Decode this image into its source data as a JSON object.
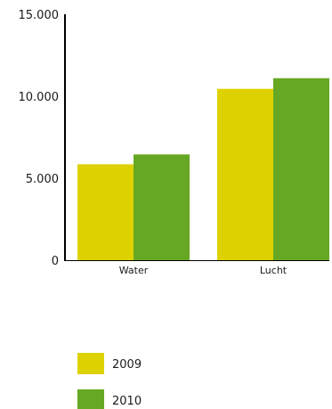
{
  "chart_data": {
    "type": "bar",
    "title": "",
    "xlabel": "",
    "ylabel": "",
    "categories": [
      "Water",
      "Lucht"
    ],
    "series": [
      {
        "name": "2009",
        "values": [
          5850,
          10450
        ],
        "color": "#ddd200"
      },
      {
        "name": "2010",
        "values": [
          6450,
          11100
        ],
        "color": "#66a822"
      }
    ],
    "ylim": [
      0,
      15000
    ],
    "yticks": [
      0,
      5000,
      10000,
      15000
    ],
    "ytick_labels": [
      "0",
      "5.000",
      "10.000",
      "15.000"
    ],
    "grid": false,
    "legend_position": "bottom-left"
  }
}
